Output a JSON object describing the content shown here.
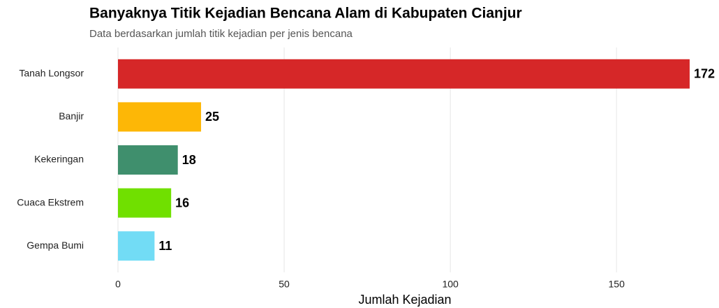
{
  "chart_data": {
    "type": "bar",
    "orientation": "horizontal",
    "title": "Banyaknya Titik Kejadian Bencana Alam di Kabupaten Cianjur",
    "subtitle": "Data berdasarkan jumlah titik kejadian per jenis bencana",
    "x_label": "Jumlah Kejadian",
    "categories": [
      "Tanah Longsor",
      "Banjir",
      "Kekeringan",
      "Cuaca Ekstrem",
      "Gempa Bumi"
    ],
    "values": [
      172,
      25,
      18,
      16,
      11
    ],
    "colors": [
      "#d62728",
      "#fdb706",
      "#3f8f6d",
      "#70e000",
      "#72dcf5"
    ],
    "xlim": [
      0,
      176
    ],
    "xticks": [
      0,
      50,
      100,
      150
    ],
    "grid": true
  }
}
